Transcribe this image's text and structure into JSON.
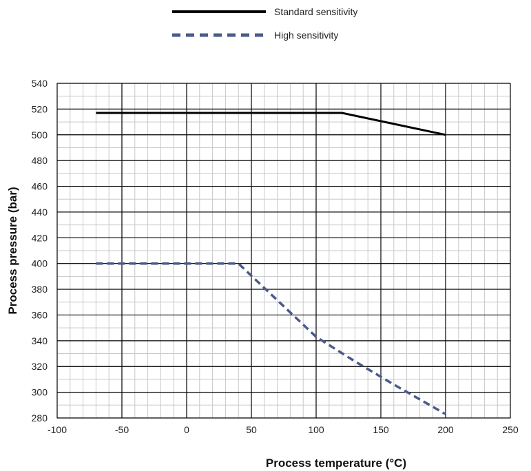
{
  "chart_data": {
    "type": "line",
    "xlabel": "Process temperature (°C)",
    "ylabel": "Process pressure (bar)",
    "xlim": [
      -100,
      250
    ],
    "ylim": [
      280,
      540
    ],
    "x_major_ticks": [
      -100,
      -50,
      0,
      50,
      100,
      150,
      200,
      250
    ],
    "y_major_ticks": [
      280,
      300,
      320,
      340,
      360,
      380,
      400,
      420,
      440,
      460,
      480,
      500,
      520,
      540
    ],
    "x_minor_step": 10,
    "y_minor_step": 10,
    "grid": true,
    "legend_position": "top",
    "series": [
      {
        "name": "Standard sensitivity",
        "color": "#000000",
        "style": "solid",
        "points": [
          [
            -70,
            517
          ],
          [
            120,
            517
          ],
          [
            200,
            500
          ]
        ]
      },
      {
        "name": "High sensitivity",
        "color": "#4a5a8a",
        "style": "dashed",
        "points": [
          [
            -70,
            400
          ],
          [
            40,
            400
          ],
          [
            100,
            343
          ],
          [
            130,
            324
          ],
          [
            160,
            306
          ],
          [
            200,
            283
          ]
        ]
      }
    ]
  }
}
